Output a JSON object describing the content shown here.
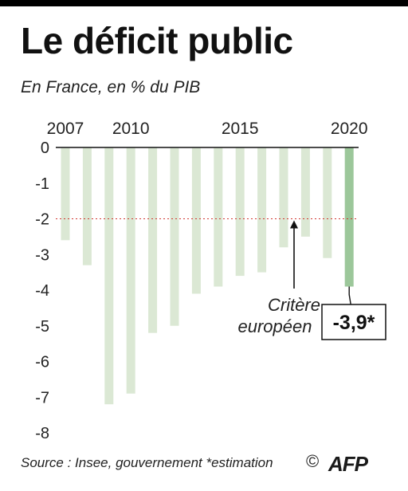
{
  "title": "Le déficit public",
  "subtitle": "En France, en % du PIB",
  "chart_data": {
    "type": "bar",
    "x": [
      2007,
      2008,
      2009,
      2010,
      2011,
      2012,
      2013,
      2014,
      2015,
      2016,
      2017,
      2018,
      2019,
      2020
    ],
    "values": [
      -2.6,
      -3.3,
      -7.2,
      -6.9,
      -5.2,
      -5.0,
      -4.1,
      -3.9,
      -3.6,
      -3.5,
      -2.8,
      -2.5,
      -3.1,
      -3.9
    ],
    "x_tick_labels": [
      "2007",
      "2010",
      "2015",
      "2020"
    ],
    "y_ticks": [
      0,
      -1,
      -2,
      -3,
      -4,
      -5,
      -6,
      -7,
      -8
    ],
    "ylim": [
      -8,
      0
    ],
    "reference_line": {
      "value": -2,
      "label_line1": "Critère",
      "label_line2": "européen"
    },
    "highlight": {
      "year": 2020,
      "label": "-3,9*"
    },
    "colors": {
      "bar": "#dbe8d4",
      "highlight_bar": "#9cc79a",
      "reference": "#d0362f"
    }
  },
  "footer": {
    "source": "Source : Insee, gouvernement *estimation",
    "copyright": "©",
    "logo": "AFP"
  }
}
